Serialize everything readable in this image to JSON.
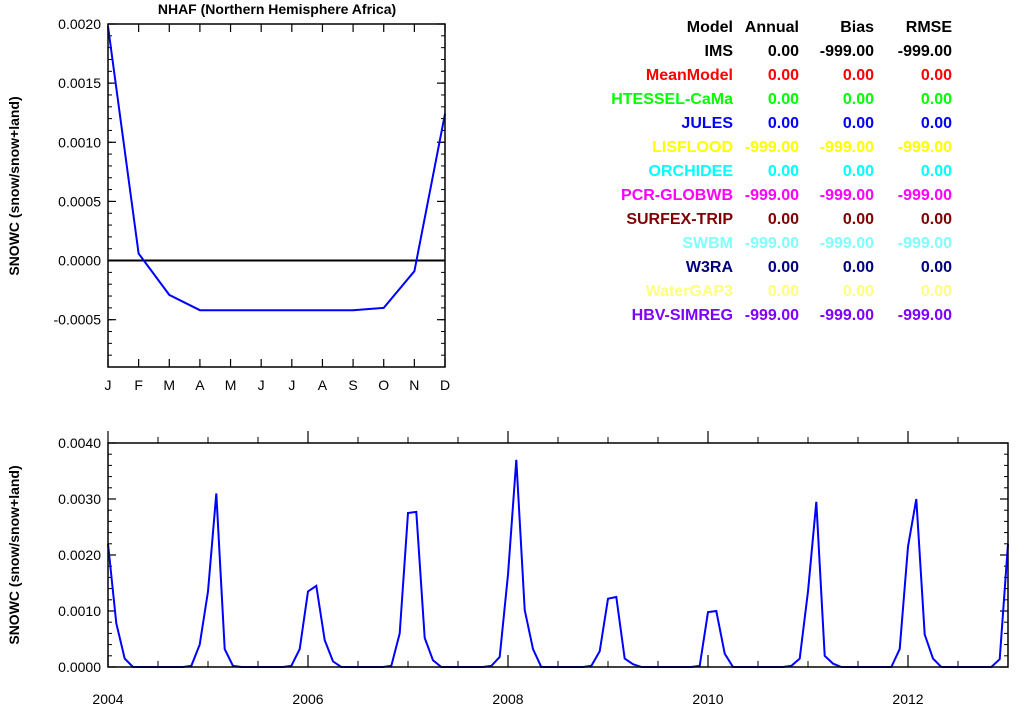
{
  "chart_data": [
    {
      "type": "line",
      "title": "NHAF (Northern Hemisphere Africa)",
      "ylabel": "SNOWC (snow/snow+land)",
      "xlabel": "",
      "categories": [
        "J",
        "F",
        "M",
        "A",
        "M",
        "J",
        "J",
        "A",
        "S",
        "O",
        "N",
        "D"
      ],
      "ylim": [
        -0.0009,
        0.002
      ],
      "yticks": [
        "0.0020",
        "0.0015",
        "0.0010",
        "0.0005",
        "0.0000",
        "-0.0005"
      ],
      "ytick_values": [
        0.002,
        0.0015,
        0.001,
        0.0005,
        0.0,
        -0.0005
      ],
      "zero_line": true,
      "series": [
        {
          "color": "#0000ff",
          "values": [
            0.00198,
            6e-05,
            -0.00029,
            -0.00042,
            -0.00042,
            -0.00042,
            -0.00042,
            -0.00042,
            -0.00042,
            -0.0004,
            -9e-05,
            0.00124
          ]
        }
      ]
    },
    {
      "type": "line",
      "title": "",
      "ylabel": "SNOWC (snow/snow+land)",
      "xlabel": "",
      "x_start": 2004.0,
      "x_step": 0.083333,
      "xlim": [
        2004,
        2013
      ],
      "xticks": [
        "2004",
        "2006",
        "2008",
        "2010",
        "2012"
      ],
      "xtick_values": [
        2004,
        2006,
        2008,
        2010,
        2012
      ],
      "ylim": [
        0.0,
        0.004
      ],
      "yticks": [
        "0.0040",
        "0.0030",
        "0.0020",
        "0.0010",
        "0.0000"
      ],
      "ytick_values": [
        0.004,
        0.003,
        0.002,
        0.001,
        0.0
      ],
      "series": [
        {
          "color": "#0000ff",
          "values": [
            0.0022,
            0.00078,
            0.00015,
            0,
            0,
            0,
            0,
            0,
            0,
            0,
            2e-05,
            0.0004,
            0.00135,
            0.0031,
            0.00032,
            2e-05,
            0,
            0,
            0,
            0,
            0,
            0,
            2e-05,
            0.00032,
            0.00135,
            0.00145,
            0.00048,
            0.0001,
            0,
            0,
            0,
            0,
            0,
            0,
            2e-05,
            0.0006,
            0.00275,
            0.00277,
            0.00052,
            0.00012,
            0,
            0,
            0,
            0,
            0,
            0,
            2e-05,
            0.00018,
            0.00165,
            0.0037,
            0.00102,
            0.00032,
            0,
            0,
            0,
            0,
            0,
            0,
            2e-05,
            0.00028,
            0.00122,
            0.00125,
            0.00015,
            5e-05,
            0,
            0,
            0,
            0,
            0,
            0,
            0,
            2e-05,
            0.00098,
            0.001,
            0.00024,
            0,
            0,
            0,
            0,
            0,
            0,
            0,
            2e-05,
            0.00015,
            0.00135,
            0.00295,
            0.0002,
            6e-05,
            0,
            0,
            0,
            0,
            0,
            0,
            0,
            0.00032,
            0.00215,
            0.003,
            0.00058,
            0.00015,
            0,
            0,
            0,
            0,
            0,
            0,
            0,
            0.00014,
            0.0022
          ]
        }
      ]
    }
  ],
  "legend": {
    "headers": [
      "Model",
      "Annual",
      "Bias",
      "RMSE"
    ],
    "rows": [
      {
        "name": "IMS",
        "annual": "0.00",
        "bias": "-999.00",
        "rmse": "-999.00",
        "color": "#000000"
      },
      {
        "name": "MeanModel",
        "annual": "0.00",
        "bias": "0.00",
        "rmse": "0.00",
        "color": "#ff0000"
      },
      {
        "name": "HTESSEL-CaMa",
        "annual": "0.00",
        "bias": "0.00",
        "rmse": "0.00",
        "color": "#00ff00"
      },
      {
        "name": "JULES",
        "annual": "0.00",
        "bias": "0.00",
        "rmse": "0.00",
        "color": "#0000ff"
      },
      {
        "name": "LISFLOOD",
        "annual": "-999.00",
        "bias": "-999.00",
        "rmse": "-999.00",
        "color": "#ffff00"
      },
      {
        "name": "ORCHIDEE",
        "annual": "0.00",
        "bias": "0.00",
        "rmse": "0.00",
        "color": "#00ffff"
      },
      {
        "name": "PCR-GLOBWB",
        "annual": "-999.00",
        "bias": "-999.00",
        "rmse": "-999.00",
        "color": "#ff00ff"
      },
      {
        "name": "SURFEX-TRIP",
        "annual": "0.00",
        "bias": "0.00",
        "rmse": "0.00",
        "color": "#800000"
      },
      {
        "name": "SWBM",
        "annual": "-999.00",
        "bias": "-999.00",
        "rmse": "-999.00",
        "color": "#80ffff"
      },
      {
        "name": "W3RA",
        "annual": "0.00",
        "bias": "0.00",
        "rmse": "0.00",
        "color": "#000080"
      },
      {
        "name": "WaterGAP3",
        "annual": "0.00",
        "bias": "0.00",
        "rmse": "0.00",
        "color": "#ffff80"
      },
      {
        "name": "HBV-SIMREG",
        "annual": "-999.00",
        "bias": "-999.00",
        "rmse": "-999.00",
        "color": "#8000ff"
      }
    ]
  }
}
